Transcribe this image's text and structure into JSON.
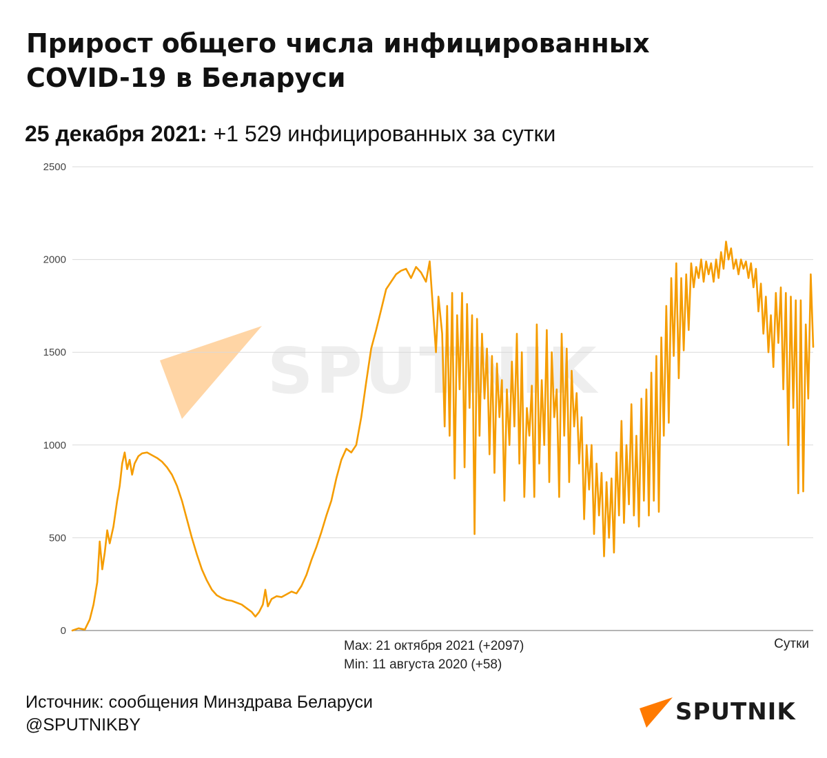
{
  "header": {
    "title_line1": "Прирост общего числа инфицированных",
    "title_line2": "COVID-19 в Беларуси",
    "date_label": "25 декабря 2021:",
    "date_value": "+1 529 инфицированных за сутки"
  },
  "annotations": {
    "max": "Max: 21 октября 2021 (+2097)",
    "min": "Min: 11 августа 2020 (+58)",
    "unit": "Сутки"
  },
  "footer": {
    "source": "Источник: сообщения Минздрава Беларуси",
    "handle": "@SPUTNIKBY"
  },
  "brand": {
    "logo_text": "SPUTNIK",
    "watermark_text": "SPUTNIK",
    "logo_icon": "sputnik-wing-icon",
    "accent_color": "#ff7a00"
  },
  "chart_data": {
    "type": "line",
    "title": "Прирост общего числа инфицированных COVID-19 в Беларуси",
    "xlabel": "Сутки",
    "ylabel": "",
    "ylim": [
      0,
      2500
    ],
    "yticks": [
      0,
      500,
      1000,
      1500,
      2000,
      2500
    ],
    "grid": true,
    "legend": "none",
    "line_color": "#f59c00",
    "keypoints": [
      [
        0,
        0
      ],
      [
        5,
        12
      ],
      [
        10,
        5
      ],
      [
        14,
        60
      ],
      [
        17,
        140
      ],
      [
        20,
        260
      ],
      [
        22,
        480
      ],
      [
        24,
        330
      ],
      [
        26,
        420
      ],
      [
        28,
        540
      ],
      [
        30,
        470
      ],
      [
        33,
        560
      ],
      [
        36,
        700
      ],
      [
        38,
        780
      ],
      [
        40,
        900
      ],
      [
        42,
        960
      ],
      [
        44,
        870
      ],
      [
        46,
        920
      ],
      [
        48,
        840
      ],
      [
        50,
        900
      ],
      [
        53,
        940
      ],
      [
        56,
        955
      ],
      [
        60,
        960
      ],
      [
        64,
        945
      ],
      [
        68,
        930
      ],
      [
        72,
        910
      ],
      [
        76,
        880
      ],
      [
        80,
        840
      ],
      [
        84,
        780
      ],
      [
        88,
        700
      ],
      [
        92,
        600
      ],
      [
        96,
        500
      ],
      [
        100,
        410
      ],
      [
        104,
        330
      ],
      [
        108,
        270
      ],
      [
        112,
        220
      ],
      [
        116,
        190
      ],
      [
        120,
        175
      ],
      [
        124,
        165
      ],
      [
        128,
        160
      ],
      [
        132,
        150
      ],
      [
        136,
        140
      ],
      [
        140,
        120
      ],
      [
        144,
        100
      ],
      [
        147,
        75
      ],
      [
        150,
        100
      ],
      [
        153,
        140
      ],
      [
        155,
        220
      ],
      [
        157,
        130
      ],
      [
        160,
        170
      ],
      [
        164,
        185
      ],
      [
        168,
        180
      ],
      [
        172,
        195
      ],
      [
        176,
        210
      ],
      [
        180,
        200
      ],
      [
        184,
        240
      ],
      [
        188,
        300
      ],
      [
        192,
        380
      ],
      [
        196,
        450
      ],
      [
        200,
        530
      ],
      [
        204,
        620
      ],
      [
        208,
        700
      ],
      [
        212,
        820
      ],
      [
        216,
        920
      ],
      [
        220,
        980
      ],
      [
        224,
        960
      ],
      [
        228,
        1000
      ],
      [
        232,
        1150
      ],
      [
        236,
        1340
      ],
      [
        240,
        1520
      ],
      [
        244,
        1620
      ],
      [
        248,
        1730
      ],
      [
        252,
        1840
      ],
      [
        256,
        1880
      ],
      [
        260,
        1920
      ],
      [
        264,
        1940
      ],
      [
        268,
        1950
      ],
      [
        272,
        1900
      ],
      [
        276,
        1960
      ],
      [
        280,
        1930
      ],
      [
        284,
        1880
      ],
      [
        287,
        1990
      ],
      [
        290,
        1700
      ],
      [
        292,
        1500
      ],
      [
        294,
        1800
      ],
      [
        297,
        1600
      ],
      [
        299,
        1100
      ],
      [
        301,
        1750
      ],
      [
        303,
        1050
      ],
      [
        305,
        1820
      ],
      [
        307,
        820
      ],
      [
        309,
        1700
      ],
      [
        311,
        1300
      ],
      [
        313,
        1820
      ],
      [
        315,
        880
      ],
      [
        317,
        1760
      ],
      [
        319,
        1200
      ],
      [
        321,
        1700
      ],
      [
        323,
        520
      ],
      [
        325,
        1680
      ],
      [
        327,
        1050
      ],
      [
        329,
        1600
      ],
      [
        331,
        1250
      ],
      [
        333,
        1520
      ],
      [
        335,
        950
      ],
      [
        337,
        1480
      ],
      [
        339,
        850
      ],
      [
        341,
        1440
      ],
      [
        343,
        1150
      ],
      [
        345,
        1350
      ],
      [
        347,
        700
      ],
      [
        349,
        1300
      ],
      [
        351,
        1000
      ],
      [
        353,
        1450
      ],
      [
        355,
        1100
      ],
      [
        357,
        1600
      ],
      [
        359,
        900
      ],
      [
        361,
        1500
      ],
      [
        363,
        720
      ],
      [
        365,
        1200
      ],
      [
        367,
        1050
      ],
      [
        369,
        1320
      ],
      [
        371,
        720
      ],
      [
        373,
        1650
      ],
      [
        375,
        900
      ],
      [
        377,
        1350
      ],
      [
        379,
        1000
      ],
      [
        381,
        1620
      ],
      [
        383,
        800
      ],
      [
        385,
        1500
      ],
      [
        387,
        1150
      ],
      [
        389,
        1300
      ],
      [
        391,
        720
      ],
      [
        393,
        1600
      ],
      [
        395,
        1050
      ],
      [
        397,
        1520
      ],
      [
        399,
        800
      ],
      [
        401,
        1400
      ],
      [
        403,
        1100
      ],
      [
        405,
        1280
      ],
      [
        407,
        900
      ],
      [
        409,
        1150
      ],
      [
        411,
        600
      ],
      [
        413,
        1000
      ],
      [
        415,
        760
      ],
      [
        417,
        1000
      ],
      [
        419,
        520
      ],
      [
        421,
        900
      ],
      [
        423,
        620
      ],
      [
        425,
        850
      ],
      [
        427,
        400
      ],
      [
        429,
        800
      ],
      [
        431,
        500
      ],
      [
        433,
        820
      ],
      [
        435,
        420
      ],
      [
        437,
        960
      ],
      [
        439,
        620
      ],
      [
        441,
        1130
      ],
      [
        443,
        580
      ],
      [
        445,
        1000
      ],
      [
        447,
        680
      ],
      [
        449,
        1220
      ],
      [
        451,
        620
      ],
      [
        453,
        1050
      ],
      [
        455,
        560
      ],
      [
        457,
        1250
      ],
      [
        459,
        700
      ],
      [
        461,
        1300
      ],
      [
        463,
        620
      ],
      [
        465,
        1390
      ],
      [
        467,
        700
      ],
      [
        469,
        1480
      ],
      [
        471,
        640
      ],
      [
        473,
        1580
      ],
      [
        475,
        1050
      ],
      [
        477,
        1750
      ],
      [
        479,
        1120
      ],
      [
        481,
        1900
      ],
      [
        483,
        1480
      ],
      [
        485,
        1980
      ],
      [
        487,
        1360
      ],
      [
        489,
        1900
      ],
      [
        491,
        1510
      ],
      [
        493,
        1920
      ],
      [
        495,
        1620
      ],
      [
        497,
        1980
      ],
      [
        499,
        1850
      ],
      [
        501,
        1960
      ],
      [
        503,
        1900
      ],
      [
        505,
        2000
      ],
      [
        507,
        1880
      ],
      [
        509,
        1990
      ],
      [
        511,
        1920
      ],
      [
        513,
        1980
      ],
      [
        515,
        1880
      ],
      [
        517,
        2000
      ],
      [
        519,
        1900
      ],
      [
        521,
        2040
      ],
      [
        523,
        1950
      ],
      [
        525,
        2097
      ],
      [
        527,
        2000
      ],
      [
        529,
        2060
      ],
      [
        531,
        1950
      ],
      [
        533,
        2000
      ],
      [
        535,
        1920
      ],
      [
        537,
        2000
      ],
      [
        539,
        1950
      ],
      [
        541,
        1990
      ],
      [
        543,
        1900
      ],
      [
        545,
        1980
      ],
      [
        547,
        1850
      ],
      [
        549,
        1950
      ],
      [
        551,
        1720
      ],
      [
        553,
        1870
      ],
      [
        555,
        1600
      ],
      [
        557,
        1800
      ],
      [
        559,
        1500
      ],
      [
        561,
        1700
      ],
      [
        563,
        1420
      ],
      [
        565,
        1820
      ],
      [
        567,
        1550
      ],
      [
        569,
        1850
      ],
      [
        571,
        1300
      ],
      [
        573,
        1820
      ],
      [
        575,
        1000
      ],
      [
        577,
        1800
      ],
      [
        579,
        1200
      ],
      [
        581,
        1780
      ],
      [
        583,
        740
      ],
      [
        585,
        1780
      ],
      [
        587,
        750
      ],
      [
        589,
        1650
      ],
      [
        591,
        1250
      ],
      [
        593,
        1920
      ],
      [
        595,
        1529
      ]
    ],
    "max_point": {
      "label": "21 октября 2021",
      "value": 2097
    },
    "min_point": {
      "label": "11 августа 2020",
      "value": 58
    }
  }
}
